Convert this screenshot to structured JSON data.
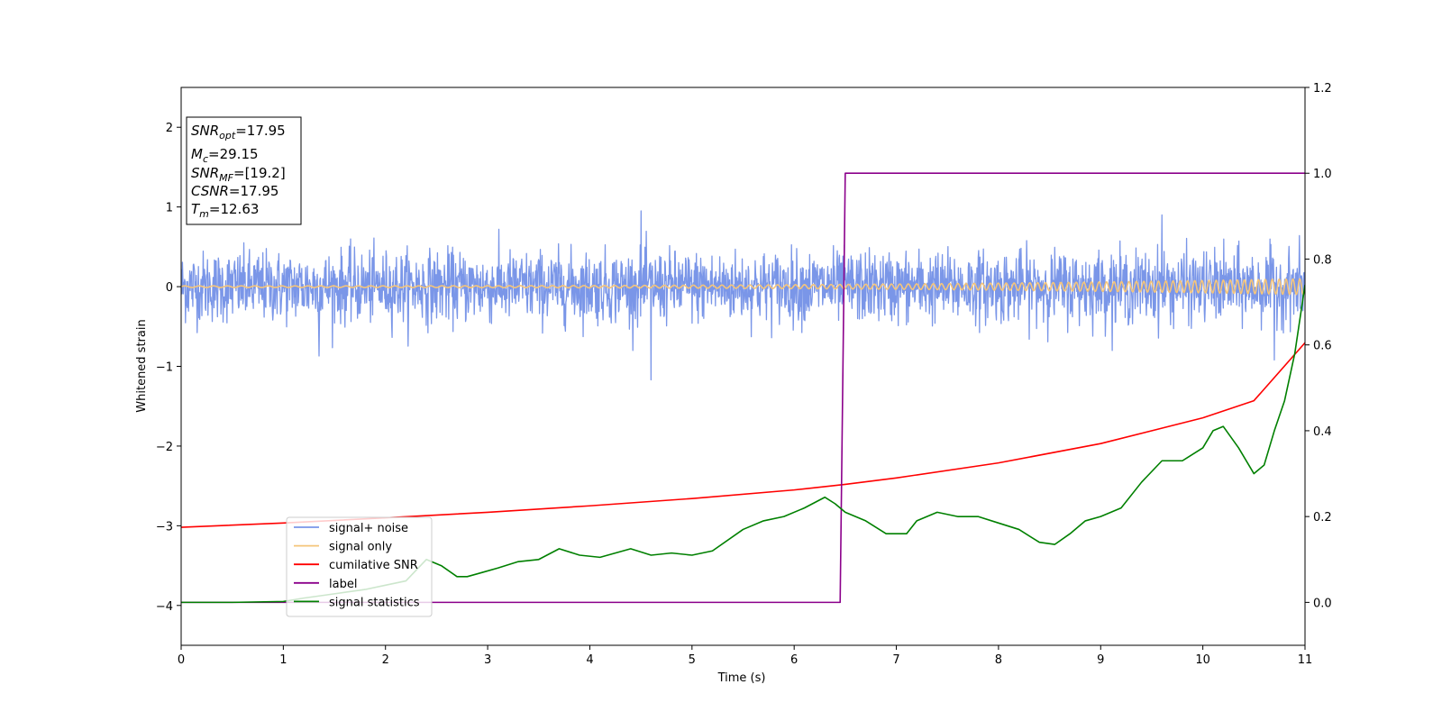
{
  "chart_data": {
    "type": "line",
    "title": "",
    "xlabel": "Time (s)",
    "ylabel": "Whitened strain",
    "y2label": "",
    "xlim": [
      0,
      11
    ],
    "ylim": [
      -4.5,
      2.5
    ],
    "y2lim": [
      -0.1,
      1.2
    ],
    "xticks": [
      0,
      1,
      2,
      3,
      4,
      5,
      6,
      7,
      8,
      9,
      10,
      11
    ],
    "yticks": [
      -4,
      -3,
      -2,
      -1,
      0,
      1,
      2
    ],
    "yticks_labels": [
      "−4",
      "−3",
      "−2",
      "−1",
      "0",
      "1",
      "2"
    ],
    "y2ticks": [
      0.0,
      0.2,
      0.4,
      0.6,
      0.8,
      1.0,
      1.2
    ],
    "y2ticks_labels": [
      "0.0",
      "0.2",
      "0.4",
      "0.6",
      "0.8",
      "1.0",
      "1.2"
    ],
    "grid": false,
    "legend_position": "lower-left",
    "info_box": [
      {
        "main": "SNR",
        "sub": "opt",
        "rest": "=17.95"
      },
      {
        "main": "M",
        "sub": "c",
        "rest": "=29.15"
      },
      {
        "main": "SNR",
        "sub": "MF",
        "rest": "=[19.2]"
      },
      {
        "main": "CSNR",
        "sub": "",
        "rest": "=17.95"
      },
      {
        "main": "T",
        "sub": "m",
        "rest": "=12.63"
      }
    ],
    "series": [
      {
        "name": "signal+ noise",
        "axis": "left",
        "color": "#7a96e8",
        "kind": "noise",
        "amplitude_envelope": 0.55,
        "extremes": [
          [
            4.6,
            -1.17
          ],
          [
            4.5,
            0.95
          ],
          [
            1.35,
            -0.87
          ],
          [
            10.7,
            -0.92
          ],
          [
            9.6,
            0.9
          ]
        ]
      },
      {
        "name": "signal only",
        "axis": "left",
        "color": "#f5c57a",
        "kind": "chirp",
        "amplitude_start": 0.01,
        "amplitude_end": 0.1,
        "frequency_start_hz": 7,
        "frequency_end_hz": 15
      },
      {
        "name": "cumilative SNR",
        "axis": "right",
        "color": "#ff0000",
        "x": [
          0,
          1,
          2,
          3,
          4,
          5,
          6,
          6.5,
          7,
          8,
          9,
          10,
          10.5,
          11
        ],
        "y": [
          0.175,
          0.185,
          0.197,
          0.21,
          0.225,
          0.242,
          0.262,
          0.275,
          0.29,
          0.325,
          0.37,
          0.43,
          0.47,
          0.605
        ]
      },
      {
        "name": "label",
        "axis": "right",
        "color": "#8b008b",
        "x": [
          0,
          6.45,
          6.5,
          11
        ],
        "y": [
          0,
          0,
          1,
          1
        ]
      },
      {
        "name": "signal statistics",
        "axis": "right",
        "color": "#008000",
        "x": [
          0,
          0.5,
          1.0,
          1.2,
          1.5,
          1.8,
          2.0,
          2.2,
          2.4,
          2.55,
          2.7,
          2.8,
          2.95,
          3.1,
          3.3,
          3.5,
          3.7,
          3.9,
          4.1,
          4.4,
          4.6,
          4.8,
          5.0,
          5.2,
          5.5,
          5.7,
          5.9,
          6.1,
          6.3,
          6.4,
          6.5,
          6.7,
          6.9,
          7.1,
          7.2,
          7.4,
          7.6,
          7.8,
          8.0,
          8.2,
          8.4,
          8.55,
          8.7,
          8.85,
          9.0,
          9.2,
          9.4,
          9.6,
          9.8,
          10.0,
          10.1,
          10.2,
          10.35,
          10.5,
          10.6,
          10.7,
          10.8,
          10.9,
          11.0
        ],
        "y": [
          0.0,
          0.0,
          0.002,
          0.01,
          0.02,
          0.03,
          0.04,
          0.05,
          0.1,
          0.085,
          0.06,
          0.06,
          0.07,
          0.08,
          0.095,
          0.1,
          0.125,
          0.11,
          0.105,
          0.125,
          0.11,
          0.115,
          0.11,
          0.12,
          0.17,
          0.19,
          0.2,
          0.22,
          0.245,
          0.23,
          0.21,
          0.19,
          0.16,
          0.16,
          0.19,
          0.21,
          0.2,
          0.2,
          0.185,
          0.17,
          0.14,
          0.135,
          0.16,
          0.19,
          0.2,
          0.22,
          0.28,
          0.33,
          0.33,
          0.36,
          0.4,
          0.41,
          0.36,
          0.3,
          0.32,
          0.4,
          0.47,
          0.58,
          0.74
        ]
      }
    ]
  }
}
